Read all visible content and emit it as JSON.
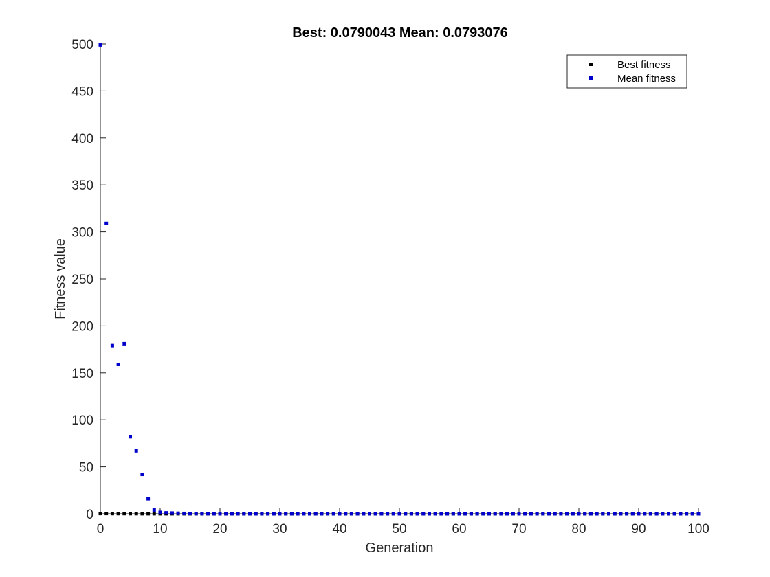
{
  "chart_data": {
    "type": "scatter",
    "title": "Best: 0.0790043 Mean: 0.0793076",
    "xlabel": "Generation",
    "ylabel": "Fitness value",
    "xlim": [
      0,
      100
    ],
    "ylim": [
      0,
      500
    ],
    "xticks": [
      0,
      10,
      20,
      30,
      40,
      50,
      60,
      70,
      80,
      90,
      100
    ],
    "yticks": [
      0,
      50,
      100,
      150,
      200,
      250,
      300,
      350,
      400,
      450,
      500
    ],
    "grid": false,
    "legend_position": "top-right",
    "series": [
      {
        "name": "Best fitness",
        "color": "#000000",
        "marker": "square",
        "x": [
          0,
          1,
          2,
          3,
          4,
          5,
          6,
          7,
          8,
          9,
          10,
          11,
          12,
          13,
          14,
          15,
          16,
          17,
          18,
          19,
          20,
          21,
          22,
          23,
          24,
          25,
          26,
          27,
          28,
          29,
          30,
          31,
          32,
          33,
          34,
          35,
          36,
          37,
          38,
          39,
          40,
          41,
          42,
          43,
          44,
          45,
          46,
          47,
          48,
          49,
          50,
          51,
          52,
          53,
          54,
          55,
          56,
          57,
          58,
          59,
          60,
          61,
          62,
          63,
          64,
          65,
          66,
          67,
          68,
          69,
          70,
          71,
          72,
          73,
          74,
          75,
          76,
          77,
          78,
          79,
          80,
          81,
          82,
          83,
          84,
          85,
          86,
          87,
          88,
          89,
          90,
          91,
          92,
          93,
          94,
          95,
          96,
          97,
          98,
          99,
          100
        ],
        "y": [
          0.3,
          0.3,
          0.2,
          0.2,
          0.2,
          0.15,
          0.15,
          0.1,
          0.1,
          0.09,
          0.085,
          0.083,
          0.082,
          0.081,
          0.0805,
          0.08,
          0.08,
          0.0795,
          0.0795,
          0.0795,
          0.079,
          0.079,
          0.079,
          0.079,
          0.079,
          0.079,
          0.079,
          0.079,
          0.079,
          0.079,
          0.079,
          0.079,
          0.079,
          0.079,
          0.079,
          0.079,
          0.079,
          0.079,
          0.079,
          0.079,
          0.079,
          0.079,
          0.079,
          0.079,
          0.079,
          0.079,
          0.079,
          0.079,
          0.079,
          0.079,
          0.079,
          0.079,
          0.079,
          0.079,
          0.079,
          0.079,
          0.079,
          0.079,
          0.079,
          0.079,
          0.079,
          0.079,
          0.079,
          0.079,
          0.079,
          0.079,
          0.079,
          0.079,
          0.079,
          0.079,
          0.079,
          0.079,
          0.079,
          0.079,
          0.079,
          0.079,
          0.079,
          0.079,
          0.079,
          0.079,
          0.079,
          0.079,
          0.079,
          0.079,
          0.079,
          0.079,
          0.079,
          0.079,
          0.079,
          0.079,
          0.079,
          0.079,
          0.079,
          0.079,
          0.079,
          0.079,
          0.079,
          0.079,
          0.079,
          0.079,
          0.079
        ]
      },
      {
        "name": "Mean fitness",
        "color": "#0000cc",
        "marker": "square",
        "x": [
          0,
          1,
          2,
          3,
          4,
          5,
          6,
          7,
          8,
          9,
          10,
          11,
          12,
          13,
          14,
          15,
          16,
          17,
          18,
          19,
          20,
          21,
          22,
          23,
          24,
          25,
          26,
          27,
          28,
          29,
          30,
          31,
          32,
          33,
          34,
          35,
          36,
          37,
          38,
          39,
          40,
          41,
          42,
          43,
          44,
          45,
          46,
          47,
          48,
          49,
          50,
          51,
          52,
          53,
          54,
          55,
          56,
          57,
          58,
          59,
          60,
          61,
          62,
          63,
          64,
          65,
          66,
          67,
          68,
          69,
          70,
          71,
          72,
          73,
          74,
          75,
          76,
          77,
          78,
          79,
          80,
          81,
          82,
          83,
          84,
          85,
          86,
          87,
          88,
          89,
          90,
          91,
          92,
          93,
          94,
          95,
          96,
          97,
          98,
          99,
          100
        ],
        "y": [
          499,
          309,
          179,
          159,
          181,
          82,
          67,
          42,
          16,
          4,
          1.5,
          1,
          0.8,
          0.6,
          0.4,
          0.3,
          0.25,
          0.2,
          0.15,
          0.12,
          0.1,
          0.09,
          0.085,
          0.082,
          0.081,
          0.08,
          0.08,
          0.08,
          0.0795,
          0.0795,
          0.0795,
          0.0795,
          0.0795,
          0.0795,
          0.0795,
          0.0795,
          0.0795,
          0.0795,
          0.0795,
          0.0795,
          0.0795,
          0.0795,
          0.0795,
          0.0795,
          0.0795,
          0.0795,
          0.0795,
          0.0795,
          0.0795,
          0.0795,
          0.0795,
          0.0795,
          0.0795,
          0.0795,
          0.0795,
          0.0795,
          0.0795,
          0.0795,
          0.0795,
          0.0795,
          0.0795,
          0.0795,
          0.0795,
          0.0795,
          0.0795,
          0.0795,
          0.0795,
          0.0795,
          0.0795,
          0.0795,
          0.0795,
          0.0795,
          0.0795,
          0.0795,
          0.0795,
          0.0795,
          0.0795,
          0.0795,
          0.0795,
          0.0795,
          0.0795,
          0.0795,
          0.0795,
          0.0795,
          0.0795,
          0.0795,
          0.0795,
          0.0795,
          0.0795,
          0.0795,
          0.0795,
          0.0795,
          0.0795,
          0.0795,
          0.0795,
          0.0795,
          0.0795,
          0.0795,
          0.0795,
          0.0795,
          0.0793
        ]
      }
    ]
  }
}
